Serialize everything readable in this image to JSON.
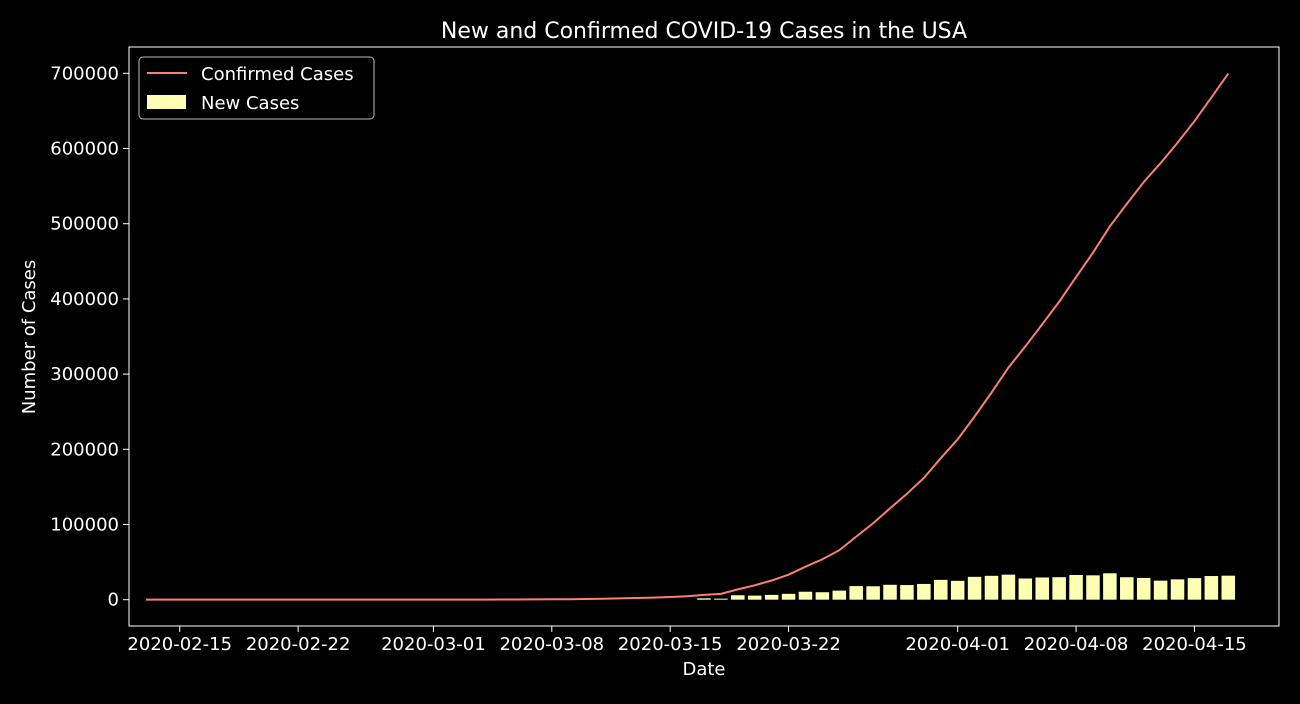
{
  "chart_data": {
    "type": "bar",
    "title": "New and Confirmed COVID-19 Cases in the USA",
    "xlabel": "Date",
    "ylabel": "Number of Cases",
    "x_range": [
      "2020-02-12",
      "2020-04-20"
    ],
    "ylim": [
      -35000,
      735000
    ],
    "grid": false,
    "legend_position": "top-left",
    "background": "#000000",
    "x_ticks": [
      {
        "date": "2020-02-15",
        "label": "2020-02-15"
      },
      {
        "date": "2020-02-22",
        "label": "2020-02-22"
      },
      {
        "date": "2020-03-01",
        "label": "2020-03-01"
      },
      {
        "date": "2020-03-08",
        "label": "2020-03-08"
      },
      {
        "date": "2020-03-15",
        "label": "2020-03-15"
      },
      {
        "date": "2020-03-22",
        "label": "2020-03-22"
      },
      {
        "date": "2020-04-01",
        "label": "2020-04-01"
      },
      {
        "date": "2020-04-08",
        "label": "2020-04-08"
      },
      {
        "date": "2020-04-15",
        "label": "2020-04-15"
      }
    ],
    "y_ticks": [
      0,
      100000,
      200000,
      300000,
      400000,
      500000,
      600000,
      700000
    ],
    "series": [
      {
        "name": "Confirmed Cases",
        "kind": "line",
        "color": "#fa8072",
        "points": [
          {
            "x": "2020-02-13",
            "y": 15
          },
          {
            "x": "2020-02-14",
            "y": 15
          },
          {
            "x": "2020-02-15",
            "y": 15
          },
          {
            "x": "2020-02-16",
            "y": 15
          },
          {
            "x": "2020-02-17",
            "y": 15
          },
          {
            "x": "2020-02-18",
            "y": 15
          },
          {
            "x": "2020-02-19",
            "y": 15
          },
          {
            "x": "2020-02-20",
            "y": 15
          },
          {
            "x": "2020-02-21",
            "y": 35
          },
          {
            "x": "2020-02-22",
            "y": 35
          },
          {
            "x": "2020-02-23",
            "y": 35
          },
          {
            "x": "2020-02-24",
            "y": 53
          },
          {
            "x": "2020-02-25",
            "y": 53
          },
          {
            "x": "2020-02-26",
            "y": 59
          },
          {
            "x": "2020-02-27",
            "y": 60
          },
          {
            "x": "2020-02-28",
            "y": 62
          },
          {
            "x": "2020-02-29",
            "y": 70
          },
          {
            "x": "2020-03-01",
            "y": 76
          },
          {
            "x": "2020-03-02",
            "y": 101
          },
          {
            "x": "2020-03-03",
            "y": 122
          },
          {
            "x": "2020-03-04",
            "y": 153
          },
          {
            "x": "2020-03-05",
            "y": 221
          },
          {
            "x": "2020-03-06",
            "y": 278
          },
          {
            "x": "2020-03-07",
            "y": 417
          },
          {
            "x": "2020-03-08",
            "y": 537
          },
          {
            "x": "2020-03-09",
            "y": 605
          },
          {
            "x": "2020-03-10",
            "y": 959
          },
          {
            "x": "2020-03-11",
            "y": 1281
          },
          {
            "x": "2020-03-12",
            "y": 1663
          },
          {
            "x": "2020-03-13",
            "y": 2179
          },
          {
            "x": "2020-03-14",
            "y": 2726
          },
          {
            "x": "2020-03-15",
            "y": 3499
          },
          {
            "x": "2020-03-16",
            "y": 4632
          },
          {
            "x": "2020-03-17",
            "y": 6421
          },
          {
            "x": "2020-03-18",
            "y": 7786
          },
          {
            "x": "2020-03-19",
            "y": 13680
          },
          {
            "x": "2020-03-20",
            "y": 19100
          },
          {
            "x": "2020-03-21",
            "y": 25489
          },
          {
            "x": "2020-03-22",
            "y": 33276
          },
          {
            "x": "2020-03-23",
            "y": 43847
          },
          {
            "x": "2020-03-24",
            "y": 53740
          },
          {
            "x": "2020-03-25",
            "y": 65778
          },
          {
            "x": "2020-03-26",
            "y": 83836
          },
          {
            "x": "2020-03-27",
            "y": 101657
          },
          {
            "x": "2020-03-28",
            "y": 121465
          },
          {
            "x": "2020-03-29",
            "y": 140909
          },
          {
            "x": "2020-03-30",
            "y": 161831
          },
          {
            "x": "2020-03-31",
            "y": 188172
          },
          {
            "x": "2020-04-01",
            "y": 213242
          },
          {
            "x": "2020-04-02",
            "y": 243622
          },
          {
            "x": "2020-04-03",
            "y": 275367
          },
          {
            "x": "2020-04-04",
            "y": 308650
          },
          {
            "x": "2020-04-05",
            "y": 336802
          },
          {
            "x": "2020-04-06",
            "y": 366317
          },
          {
            "x": "2020-04-07",
            "y": 396223
          },
          {
            "x": "2020-04-08",
            "y": 429052
          },
          {
            "x": "2020-04-09",
            "y": 461437
          },
          {
            "x": "2020-04-10",
            "y": 496535
          },
          {
            "x": "2020-04-11",
            "y": 526396
          },
          {
            "x": "2020-04-12",
            "y": 555313
          },
          {
            "x": "2020-04-13",
            "y": 580619
          },
          {
            "x": "2020-04-14",
            "y": 607670
          },
          {
            "x": "2020-04-15",
            "y": 636350
          },
          {
            "x": "2020-04-16",
            "y": 667801
          },
          {
            "x": "2020-04-17",
            "y": 699706
          }
        ]
      },
      {
        "name": "New Cases",
        "kind": "bar",
        "color": "#ffffb3",
        "points": [
          {
            "x": "2020-03-17",
            "y": 1789
          },
          {
            "x": "2020-03-18",
            "y": 1365
          },
          {
            "x": "2020-03-19",
            "y": 5894
          },
          {
            "x": "2020-03-20",
            "y": 5420
          },
          {
            "x": "2020-03-21",
            "y": 6389
          },
          {
            "x": "2020-03-22",
            "y": 7787
          },
          {
            "x": "2020-03-23",
            "y": 10571
          },
          {
            "x": "2020-03-24",
            "y": 9893
          },
          {
            "x": "2020-03-25",
            "y": 12038
          },
          {
            "x": "2020-03-26",
            "y": 18058
          },
          {
            "x": "2020-03-27",
            "y": 17821
          },
          {
            "x": "2020-03-28",
            "y": 19808
          },
          {
            "x": "2020-03-29",
            "y": 19444
          },
          {
            "x": "2020-03-30",
            "y": 20922
          },
          {
            "x": "2020-03-31",
            "y": 26341
          },
          {
            "x": "2020-04-01",
            "y": 25070
          },
          {
            "x": "2020-04-02",
            "y": 30380
          },
          {
            "x": "2020-04-03",
            "y": 31745
          },
          {
            "x": "2020-04-04",
            "y": 33283
          },
          {
            "x": "2020-04-05",
            "y": 28152
          },
          {
            "x": "2020-04-06",
            "y": 29515
          },
          {
            "x": "2020-04-07",
            "y": 29906
          },
          {
            "x": "2020-04-08",
            "y": 32829
          },
          {
            "x": "2020-04-09",
            "y": 32385
          },
          {
            "x": "2020-04-10",
            "y": 35098
          },
          {
            "x": "2020-04-11",
            "y": 29861
          },
          {
            "x": "2020-04-12",
            "y": 28917
          },
          {
            "x": "2020-04-13",
            "y": 25306
          },
          {
            "x": "2020-04-14",
            "y": 27051
          },
          {
            "x": "2020-04-15",
            "y": 28680
          },
          {
            "x": "2020-04-16",
            "y": 31451
          },
          {
            "x": "2020-04-17",
            "y": 31905
          }
        ]
      }
    ]
  }
}
